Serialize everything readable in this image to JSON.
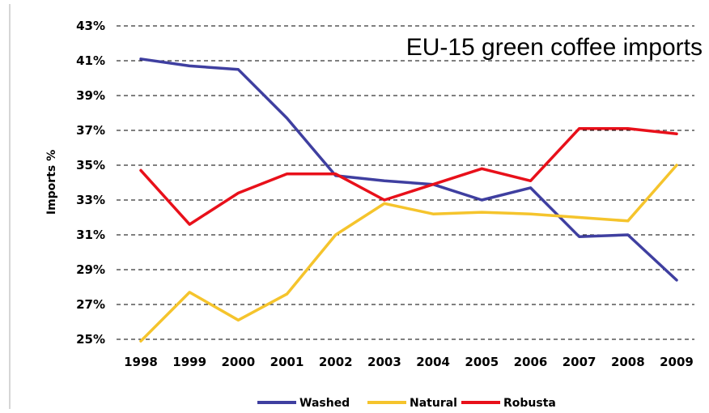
{
  "chart_data": {
    "type": "line",
    "title": "EU-15 green coffee imports",
    "ylabel": "Imports %",
    "xlabel": "",
    "categories": [
      "1998",
      "1999",
      "2000",
      "2001",
      "2002",
      "2003",
      "2004",
      "2005",
      "2006",
      "2007",
      "2008",
      "2009"
    ],
    "ylim": [
      25,
      43
    ],
    "yticks": [
      25,
      27,
      29,
      31,
      33,
      35,
      37,
      39,
      41,
      43
    ],
    "ytick_labels": [
      "25%",
      "27%",
      "29%",
      "31%",
      "33%",
      "35%",
      "37%",
      "39%",
      "41%",
      "43%"
    ],
    "grid": true,
    "legend_position": "bottom",
    "series": [
      {
        "name": "Washed",
        "color": "#3f3fa0",
        "values": [
          41.1,
          40.7,
          40.5,
          37.7,
          34.4,
          34.1,
          33.9,
          33.0,
          33.7,
          30.9,
          31.0,
          28.4
        ]
      },
      {
        "name": "Natural",
        "color": "#f5c42c",
        "values": [
          24.9,
          27.7,
          26.1,
          27.6,
          31.0,
          32.8,
          32.2,
          32.3,
          32.2,
          32.0,
          31.8,
          35.0
        ]
      },
      {
        "name": "Robusta",
        "color": "#e8101a",
        "values": [
          34.7,
          31.6,
          33.4,
          34.5,
          34.5,
          33.0,
          33.9,
          34.8,
          34.1,
          37.1,
          37.1,
          36.8
        ]
      }
    ]
  }
}
